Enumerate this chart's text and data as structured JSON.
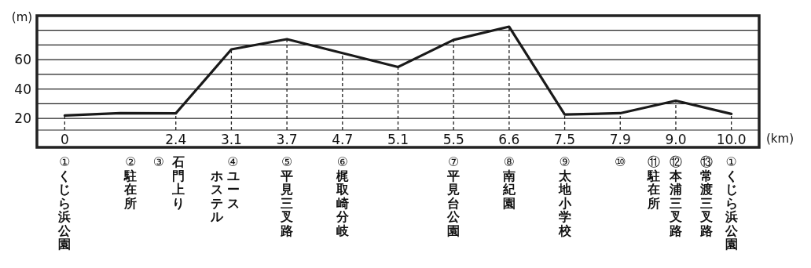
{
  "chart_data": {
    "type": "line",
    "ylabel": "(m)",
    "xlabel": "(km)",
    "categories": [
      "0",
      null,
      "2.4",
      "3.1",
      "3.7",
      "4.7",
      "5.1",
      "5.5",
      "6.6",
      "7.5",
      "7.9",
      "9.0",
      "10.0"
    ],
    "ylim": [
      12,
      90
    ],
    "yticks": [
      20,
      {
        "value": 30,
        "label": null
      },
      40,
      {
        "value": 50,
        "label": null
      },
      60,
      {
        "value": 70,
        "label": null
      },
      {
        "value": 80,
        "label": null
      }
    ],
    "grid": "y",
    "series": [
      {
        "color": "#1a1a1a",
        "values": [
          22,
          23.6,
          23.4,
          67,
          74,
          64.5,
          55,
          73.5,
          82.5,
          22.6,
          23.5,
          32,
          23
        ]
      }
    ],
    "ref_lines": [
      {
        "axis": "x",
        "value": "0",
        "line_style": "dashed",
        "color": "#222222"
      },
      {
        "axis": "x",
        "value": "2.4",
        "line_style": "dashed",
        "color": "#222222"
      },
      {
        "axis": "x",
        "value": "3.1",
        "line_style": "dashed",
        "color": "#222222"
      },
      {
        "axis": "x",
        "value": "3.7",
        "line_style": "dashed",
        "color": "#222222"
      },
      {
        "axis": "x",
        "value": "4.7",
        "line_style": "dashed",
        "color": "#222222"
      },
      {
        "axis": "x",
        "value": "5.1",
        "line_style": "dashed",
        "color": "#222222"
      },
      {
        "axis": "x",
        "value": "5.5",
        "line_style": "dashed",
        "color": "#222222"
      },
      {
        "axis": "x",
        "value": "6.6",
        "line_style": "dashed",
        "color": "#222222"
      },
      {
        "axis": "x",
        "value": "7.5",
        "line_style": "dashed",
        "color": "#222222"
      },
      {
        "axis": "x",
        "value": "7.9",
        "line_style": "dashed",
        "color": "#222222"
      },
      {
        "axis": "x",
        "value": "9.0",
        "line_style": "dashed",
        "color": "#222222"
      },
      {
        "axis": "x",
        "value": "10.0",
        "line_style": "dashed",
        "color": "#222222"
      }
    ],
    "annotations": [
      "①くじら浜公園",
      "②駐在所",
      "③",
      "石門上り",
      "④ユース",
      "ホステル",
      "⑤平見三叉路",
      "⑥梶取崎分岐",
      "⑦平見台公園",
      "⑧南紀園",
      "⑨太地小学校",
      "⑩",
      "⑪駐在所",
      "⑫本浦三叉路",
      "⑬常渡三叉路",
      "①くじら浜公園"
    ]
  }
}
